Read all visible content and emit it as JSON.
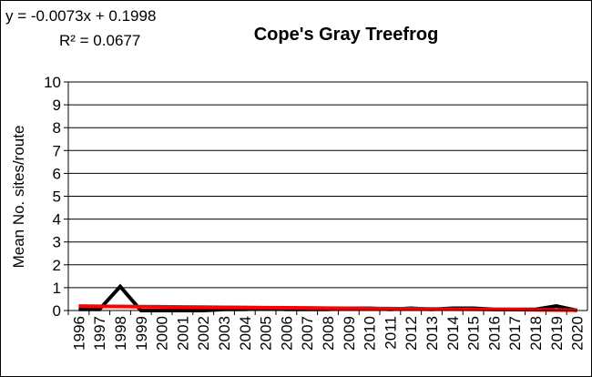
{
  "chart_data": {
    "type": "line",
    "title": "Cope's Gray Treefrog",
    "annotations": [
      "y = -0.0073x + 0.1998",
      "R² = 0.0677"
    ],
    "ylabel": "Mean No. sites/route",
    "categories": [
      "1996",
      "1997",
      "1998",
      "1999",
      "2000",
      "2001",
      "2002",
      "2003",
      "2004",
      "2005",
      "2006",
      "2007",
      "2008",
      "2009",
      "2010",
      "2011",
      "2012",
      "2013",
      "2014",
      "2015",
      "2016",
      "2017",
      "2018",
      "2019",
      "2020"
    ],
    "series": [
      {
        "color": "#000000",
        "values": [
          0.05,
          0.05,
          1.05,
          0,
          0,
          0,
          0,
          0.05,
          0.05,
          0.1,
          0.05,
          0.05,
          0.05,
          0.1,
          0.1,
          0.05,
          0.1,
          0.05,
          0.1,
          0.1,
          0.05,
          0.05,
          0.05,
          0.2,
          0
        ]
      }
    ],
    "trendline": {
      "color": "#ff0000",
      "values": [
        0.1925,
        0.1852,
        0.1779,
        0.1706,
        0.1633,
        0.156,
        0.1487,
        0.1414,
        0.1341,
        0.1268,
        0.1195,
        0.1122,
        0.1049,
        0.0976,
        0.0903,
        0.083,
        0.0757,
        0.0684,
        0.0611,
        0.0538,
        0.0465,
        0.0392,
        0.0319,
        0.0246,
        0.0173
      ]
    },
    "ylim": [
      0,
      10
    ],
    "yticks": [
      0,
      1,
      2,
      3,
      4,
      5,
      6,
      7,
      8,
      9,
      10
    ],
    "grid": true
  }
}
